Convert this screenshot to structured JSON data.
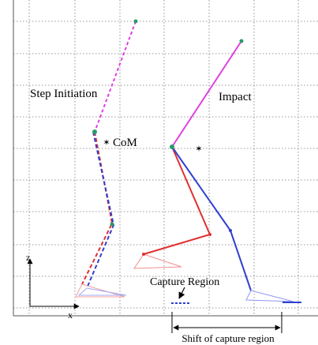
{
  "labels": {
    "step_initiation": "Step Initiation",
    "impact": "Impact",
    "com": "CoM",
    "capture_region": "Capture Region",
    "shift": "Shift of capture region",
    "z_axis": "z",
    "x_axis": "x"
  }
}
